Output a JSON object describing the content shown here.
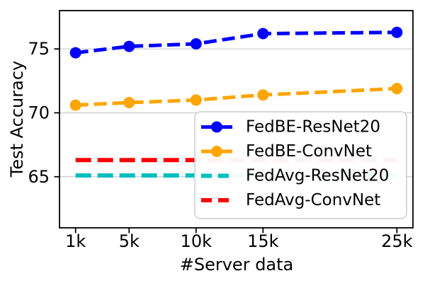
{
  "figure": {
    "background": "#ffffff",
    "spine_color": "#000000",
    "grid_color": "#c9c9c9",
    "legend_border_color": "#cccccc"
  },
  "chart_data": {
    "type": "line",
    "title": "",
    "xlabel": "#Server data",
    "ylabel": "Test Accuracy",
    "x": [
      1000,
      5000,
      10000,
      15000,
      25000
    ],
    "x_tick_labels": [
      "1k",
      "5k",
      "10k",
      "15k",
      "25k"
    ],
    "y_ticks": [
      65,
      70,
      75
    ],
    "y_tick_labels": [
      "65",
      "70",
      "75"
    ],
    "xlim": [
      -200,
      26200
    ],
    "ylim": [
      61,
      78
    ],
    "grid": "horizontal",
    "legend_position": "lower-right-inside",
    "series": [
      {
        "name": "FedBE-ResNet20",
        "color": "#0000ff",
        "style": "dashed",
        "marker": "circle",
        "line_width": 5,
        "values": [
          74.7,
          75.2,
          75.4,
          76.2,
          76.3
        ]
      },
      {
        "name": "FedBE-ConvNet",
        "color": "#ffa500",
        "style": "dashed",
        "marker": "circle",
        "line_width": 5,
        "values": [
          70.6,
          70.8,
          71.0,
          71.4,
          71.9
        ]
      },
      {
        "name": "FedAvg-ResNet20",
        "color": "#00bfbf",
        "style": "dashed",
        "marker": "none",
        "line_width": 6,
        "values": [
          65.1,
          65.1,
          65.1,
          65.1,
          65.1
        ]
      },
      {
        "name": "FedAvg-ConvNet",
        "color": "#ff0000",
        "style": "dashed",
        "marker": "none",
        "line_width": 6,
        "values": [
          66.3,
          66.3,
          66.3,
          66.3,
          66.3
        ]
      }
    ]
  }
}
